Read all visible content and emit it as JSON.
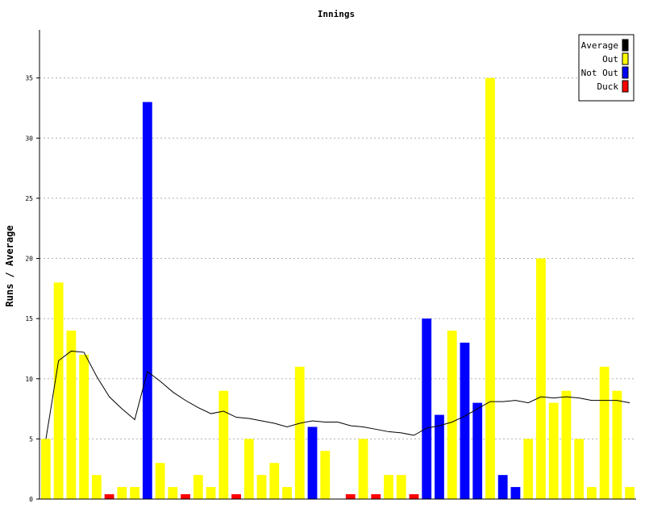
{
  "chart_data": {
    "type": "bar",
    "title": "Innings",
    "xlabel": "",
    "ylabel": "Runs / Average",
    "ylim": [
      0,
      39
    ],
    "yticks": [
      0,
      5,
      10,
      15,
      20,
      25,
      30,
      35
    ],
    "grid": true,
    "legend_position": "top-right",
    "legend": [
      {
        "name": "Average",
        "color": "#000000"
      },
      {
        "name": "Out",
        "color": "#ffff00"
      },
      {
        "name": "Not Out",
        "color": "#0000ff"
      },
      {
        "name": "Duck",
        "color": "#ff0000"
      }
    ],
    "innings": [
      {
        "runs": 5,
        "kind": "Out"
      },
      {
        "runs": 18,
        "kind": "Out"
      },
      {
        "runs": 14,
        "kind": "Out"
      },
      {
        "runs": 12,
        "kind": "Out"
      },
      {
        "runs": 2,
        "kind": "Out"
      },
      {
        "runs": 0,
        "kind": "Duck"
      },
      {
        "runs": 1,
        "kind": "Out"
      },
      {
        "runs": 1,
        "kind": "Out"
      },
      {
        "runs": 33,
        "kind": "Not Out"
      },
      {
        "runs": 3,
        "kind": "Out"
      },
      {
        "runs": 1,
        "kind": "Out"
      },
      {
        "runs": 0,
        "kind": "Duck"
      },
      {
        "runs": 2,
        "kind": "Out"
      },
      {
        "runs": 1,
        "kind": "Out"
      },
      {
        "runs": 9,
        "kind": "Out"
      },
      {
        "runs": 0,
        "kind": "Duck"
      },
      {
        "runs": 5,
        "kind": "Out"
      },
      {
        "runs": 2,
        "kind": "Out"
      },
      {
        "runs": 3,
        "kind": "Out"
      },
      {
        "runs": 1,
        "kind": "Out"
      },
      {
        "runs": 11,
        "kind": "Out"
      },
      {
        "runs": 6,
        "kind": "Not Out"
      },
      {
        "runs": 4,
        "kind": "Out"
      },
      {
        "runs": null,
        "kind": "None"
      },
      {
        "runs": 0,
        "kind": "Duck"
      },
      {
        "runs": 5,
        "kind": "Out"
      },
      {
        "runs": 0,
        "kind": "Duck"
      },
      {
        "runs": 2,
        "kind": "Out"
      },
      {
        "runs": 2,
        "kind": "Out"
      },
      {
        "runs": 0,
        "kind": "Duck"
      },
      {
        "runs": 15,
        "kind": "Not Out"
      },
      {
        "runs": 7,
        "kind": "Not Out"
      },
      {
        "runs": 14,
        "kind": "Out"
      },
      {
        "runs": 13,
        "kind": "Not Out"
      },
      {
        "runs": 8,
        "kind": "Not Out"
      },
      {
        "runs": 35,
        "kind": "Out"
      },
      {
        "runs": 2,
        "kind": "Not Out"
      },
      {
        "runs": 1,
        "kind": "Not Out"
      },
      {
        "runs": 5,
        "kind": "Out"
      },
      {
        "runs": 20,
        "kind": "Out"
      },
      {
        "runs": 8,
        "kind": "Out"
      },
      {
        "runs": 9,
        "kind": "Out"
      },
      {
        "runs": 5,
        "kind": "Out"
      },
      {
        "runs": 1,
        "kind": "Out"
      },
      {
        "runs": 11,
        "kind": "Out"
      },
      {
        "runs": 9,
        "kind": "Out"
      },
      {
        "runs": 1,
        "kind": "Out"
      }
    ],
    "average": [
      5,
      11.5,
      12.3,
      12.2,
      10.2,
      8.5,
      7.5,
      6.6,
      10.6,
      9.8,
      8.9,
      8.2,
      7.6,
      7.1,
      7.3,
      6.8,
      6.7,
      6.5,
      6.3,
      6.0,
      6.3,
      6.5,
      6.4,
      6.4,
      6.1,
      6.0,
      5.8,
      5.6,
      5.5,
      5.3,
      5.9,
      6.1,
      6.4,
      6.9,
      7.5,
      8.1,
      8.1,
      8.2,
      8.0,
      8.5,
      8.4,
      8.5,
      8.4,
      8.2,
      8.2,
      8.2,
      8.0
    ]
  }
}
